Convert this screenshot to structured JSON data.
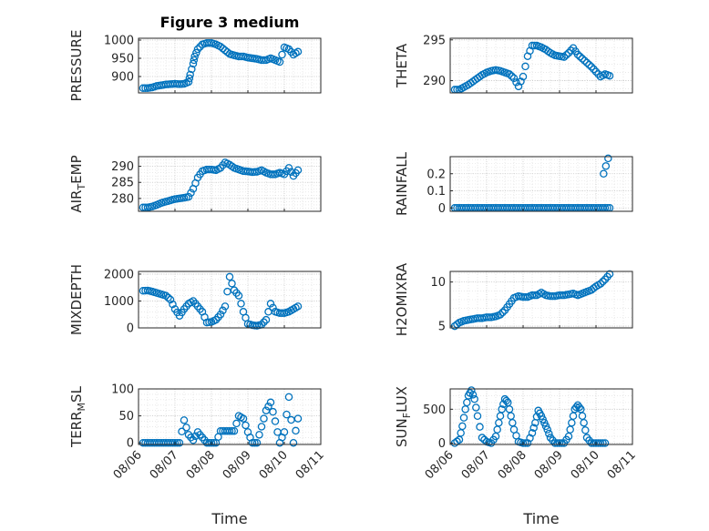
{
  "figure_title": "Figure 3 medium",
  "x_axis_label": "Time",
  "x_tick_labels": [
    "08/06",
    "08/07",
    "08/08",
    "08/09",
    "08/10",
    "08/11"
  ],
  "marker_color": "#0072BD",
  "chart_data": [
    {
      "type": "scatter",
      "title": "Figure 3 medium",
      "ylabel": "PRESSURE",
      "ylim": [
        855,
        1005
      ],
      "yticks": [
        900,
        950,
        1000
      ],
      "xlabel": "",
      "xlim": [
        "08/06",
        "08/11"
      ],
      "grid": true,
      "x": [
        "08/06 03:00",
        "08/06 06:00",
        "08/06 09:00",
        "08/06 12:00",
        "08/06 15:00",
        "08/06 18:00",
        "08/06 21:00",
        "08/07 00:00",
        "08/07 03:00",
        "08/07 06:00",
        "08/07 09:00",
        "08/07 10:00",
        "08/07 12:00",
        "08/07 13:00",
        "08/07 15:00",
        "08/07 18:00",
        "08/07 21:00",
        "08/08 00:00",
        "08/08 03:00",
        "08/08 06:00",
        "08/08 09:00",
        "08/08 12:00",
        "08/08 15:00",
        "08/08 18:00",
        "08/08 21:00",
        "08/09 00:00",
        "08/09 03:00",
        "08/09 06:00",
        "08/09 09:00",
        "08/09 12:00",
        "08/09 15:00",
        "08/09 18:00",
        "08/09 21:00",
        "08/10 00:00",
        "08/10 03:00",
        "08/10 06:00",
        "08/10 09:00"
      ],
      "y": [
        868,
        868,
        870,
        874,
        876,
        878,
        879,
        880,
        879,
        880,
        885,
        905,
        935,
        955,
        975,
        988,
        992,
        992,
        988,
        982,
        972,
        962,
        958,
        955,
        955,
        952,
        950,
        948,
        945,
        945,
        950,
        945,
        940,
        980,
        975,
        960,
        968
      ]
    },
    {
      "type": "scatter",
      "ylabel": "THETA",
      "ylim": [
        288.5,
        295.2
      ],
      "yticks": [
        290,
        295
      ],
      "xlim": [
        "08/06",
        "08/11"
      ],
      "grid": true,
      "x": [
        "08/06 03:00",
        "08/06 06:00",
        "08/06 09:00",
        "08/06 12:00",
        "08/06 15:00",
        "08/06 18:00",
        "08/06 21:00",
        "08/07 00:00",
        "08/07 03:00",
        "08/07 06:00",
        "08/07 09:00",
        "08/07 12:00",
        "08/07 15:00",
        "08/07 18:00",
        "08/07 21:00",
        "08/08 00:00",
        "08/08 03:00",
        "08/08 06:00",
        "08/08 09:00",
        "08/08 12:00",
        "08/08 15:00",
        "08/08 18:00",
        "08/08 21:00",
        "08/09 00:00",
        "08/09 03:00",
        "08/09 06:00",
        "08/09 09:00",
        "08/09 12:00",
        "08/09 15:00",
        "08/09 18:00",
        "08/09 21:00",
        "08/10 00:00",
        "08/10 03:00",
        "08/10 06:00",
        "08/10 09:00"
      ],
      "y": [
        288.9,
        288.9,
        289.2,
        289.5,
        289.9,
        290.3,
        290.7,
        291.0,
        291.2,
        291.3,
        291.2,
        291.0,
        290.8,
        290.3,
        289.3,
        290.5,
        293.0,
        294.3,
        294.3,
        294.1,
        293.8,
        293.4,
        293.1,
        293.0,
        292.9,
        293.4,
        294.0,
        293.2,
        292.7,
        292.2,
        291.7,
        291.1,
        290.5,
        290.8,
        290.6
      ]
    },
    {
      "type": "scatter",
      "ylabel": "AIR_TEMP",
      "ylim": [
        276,
        293
      ],
      "yticks": [
        280,
        285,
        290
      ],
      "xlim": [
        "08/06",
        "08/11"
      ],
      "grid": true,
      "x": [
        "08/06 03:00",
        "08/06 06:00",
        "08/06 09:00",
        "08/06 12:00",
        "08/06 15:00",
        "08/06 18:00",
        "08/06 21:00",
        "08/07 00:00",
        "08/07 03:00",
        "08/07 06:00",
        "08/07 09:00",
        "08/07 12:00",
        "08/07 15:00",
        "08/07 18:00",
        "08/07 21:00",
        "08/08 00:00",
        "08/08 03:00",
        "08/08 06:00",
        "08/08 09:00",
        "08/08 12:00",
        "08/08 15:00",
        "08/08 18:00",
        "08/08 21:00",
        "08/09 00:00",
        "08/09 03:00",
        "08/09 06:00",
        "08/09 09:00",
        "08/09 12:00",
        "08/09 15:00",
        "08/09 18:00",
        "08/09 21:00",
        "08/10 00:00",
        "08/10 03:00",
        "08/10 06:00",
        "08/10 09:00"
      ],
      "y": [
        277.2,
        277.2,
        277.5,
        278.0,
        278.6,
        279.0,
        279.4,
        279.8,
        280.0,
        280.2,
        280.5,
        283.0,
        286.5,
        288.5,
        289.0,
        289.0,
        288.8,
        289.5,
        291.2,
        290.5,
        289.5,
        289.0,
        288.5,
        288.4,
        288.2,
        288.3,
        288.8,
        288.0,
        287.5,
        287.5,
        288.0,
        287.5,
        289.5,
        287.0,
        288.8
      ]
    },
    {
      "type": "scatter",
      "ylabel": "RAINFALL",
      "ylim": [
        -0.02,
        0.3
      ],
      "yticks": [
        0,
        0.1,
        0.2
      ],
      "xlim": [
        "08/06",
        "08/11"
      ],
      "grid": true,
      "x": [
        "08/06 03:00",
        "08/06 06:00",
        "08/06 09:00",
        "08/06 12:00",
        "08/06 15:00",
        "08/06 18:00",
        "08/06 21:00",
        "08/07 00:00",
        "08/07 03:00",
        "08/07 06:00",
        "08/07 09:00",
        "08/07 12:00",
        "08/07 15:00",
        "08/07 18:00",
        "08/07 21:00",
        "08/08 00:00",
        "08/08 03:00",
        "08/08 06:00",
        "08/08 09:00",
        "08/08 12:00",
        "08/08 15:00",
        "08/08 18:00",
        "08/08 21:00",
        "08/09 00:00",
        "08/09 03:00",
        "08/09 06:00",
        "08/09 09:00",
        "08/09 12:00",
        "08/09 15:00",
        "08/09 18:00",
        "08/09 21:00",
        "08/10 00:00",
        "08/10 03:00",
        "08/10 06:00",
        "08/10 09:00",
        "08/10 05:00",
        "08/10 08:00"
      ],
      "y": [
        0,
        0,
        0,
        0,
        0,
        0,
        0,
        0,
        0,
        0,
        0,
        0,
        0,
        0,
        0,
        0,
        0,
        0,
        0,
        0,
        0,
        0,
        0,
        0,
        0,
        0,
        0,
        0,
        0,
        0,
        0,
        0,
        0,
        0,
        0,
        0.2,
        0.29
      ]
    },
    {
      "type": "scatter",
      "ylabel": "MIXDEPTH",
      "ylim": [
        0,
        2100
      ],
      "yticks": [
        0,
        1000,
        2000
      ],
      "xlim": [
        "08/06",
        "08/11"
      ],
      "grid": true,
      "x": [
        "08/06 03:00",
        "08/06 06:00",
        "08/06 09:00",
        "08/06 12:00",
        "08/06 15:00",
        "08/06 18:00",
        "08/06 21:00",
        "08/07 00:00",
        "08/07 03:00",
        "08/07 06:00",
        "08/07 09:00",
        "08/07 12:00",
        "08/07 15:00",
        "08/07 18:00",
        "08/07 21:00",
        "08/08 00:00",
        "08/08 03:00",
        "08/08 06:00",
        "08/08 09:00",
        "08/08 12:00",
        "08/08 15:00",
        "08/08 18:00",
        "08/08 21:00",
        "08/09 00:00",
        "08/09 03:00",
        "08/09 06:00",
        "08/09 09:00",
        "08/09 12:00",
        "08/09 15:00",
        "08/09 18:00",
        "08/09 21:00",
        "08/10 00:00",
        "08/10 03:00",
        "08/10 06:00",
        "08/10 09:00"
      ],
      "y": [
        1380,
        1390,
        1350,
        1300,
        1250,
        1200,
        1050,
        700,
        450,
        700,
        900,
        1000,
        800,
        600,
        200,
        220,
        300,
        500,
        800,
        1900,
        1400,
        1200,
        600,
        150,
        100,
        80,
        120,
        300,
        900,
        600,
        550,
        550,
        600,
        700,
        800
      ]
    },
    {
      "type": "scatter",
      "ylabel": "H2OMIXRA",
      "ylim": [
        4.8,
        11.2
      ],
      "yticks": [
        5,
        10
      ],
      "xlim": [
        "08/06",
        "08/11"
      ],
      "grid": true,
      "x": [
        "08/06 03:00",
        "08/06 06:00",
        "08/06 09:00",
        "08/06 12:00",
        "08/06 15:00",
        "08/06 18:00",
        "08/06 21:00",
        "08/07 00:00",
        "08/07 03:00",
        "08/07 06:00",
        "08/07 09:00",
        "08/07 12:00",
        "08/07 15:00",
        "08/07 18:00",
        "08/07 21:00",
        "08/08 00:00",
        "08/08 03:00",
        "08/08 06:00",
        "08/08 09:00",
        "08/08 12:00",
        "08/08 15:00",
        "08/08 18:00",
        "08/08 21:00",
        "08/09 00:00",
        "08/09 03:00",
        "08/09 06:00",
        "08/09 09:00",
        "08/09 12:00",
        "08/09 15:00",
        "08/09 18:00",
        "08/09 21:00",
        "08/10 00:00",
        "08/10 03:00",
        "08/10 06:00",
        "08/10 09:00"
      ],
      "y": [
        5.0,
        5.4,
        5.6,
        5.7,
        5.8,
        5.9,
        5.9,
        6.0,
        6.0,
        6.1,
        6.3,
        6.8,
        7.5,
        8.2,
        8.4,
        8.3,
        8.3,
        8.5,
        8.5,
        8.8,
        8.5,
        8.4,
        8.4,
        8.5,
        8.5,
        8.6,
        8.7,
        8.5,
        8.7,
        8.9,
        9.1,
        9.5,
        9.8,
        10.3,
        10.9
      ]
    },
    {
      "type": "scatter",
      "ylabel": "TERR_MSL",
      "ylim": [
        -3,
        100
      ],
      "yticks": [
        0,
        50,
        100
      ],
      "xlim": [
        "08/06",
        "08/11"
      ],
      "grid": true,
      "x": [
        "08/06 03:00",
        "08/06 06:00",
        "08/06 09:00",
        "08/06 12:00",
        "08/06 15:00",
        "08/06 18:00",
        "08/06 21:00",
        "08/07 00:00",
        "08/07 03:00",
        "08/07 06:00",
        "08/07 09:00",
        "08/07 12:00",
        "08/07 15:00",
        "08/07 18:00",
        "08/07 21:00",
        "08/08 00:00",
        "08/08 03:00",
        "08/08 06:00",
        "08/08 09:00",
        "08/08 12:00",
        "08/08 15:00",
        "08/08 18:00",
        "08/08 21:00",
        "08/09 00:00",
        "08/09 03:00",
        "08/09 06:00",
        "08/09 09:00",
        "08/09 12:00",
        "08/09 15:00",
        "08/09 18:00",
        "08/09 21:00",
        "08/10 00:00",
        "08/10 03:00",
        "08/10 06:00",
        "08/10 09:00"
      ],
      "y": [
        0,
        0,
        0,
        0,
        0,
        0,
        0,
        0,
        0,
        42,
        15,
        5,
        20,
        10,
        0,
        0,
        0,
        22,
        22,
        22,
        22,
        50,
        45,
        20,
        0,
        0,
        30,
        60,
        75,
        40,
        0,
        20,
        85,
        0,
        45
      ]
    },
    {
      "type": "scatter",
      "ylabel": "SUN_FLUX",
      "ylim": [
        -20,
        800
      ],
      "yticks": [
        0,
        500
      ],
      "xlim": [
        "08/06",
        "08/11"
      ],
      "grid": true,
      "x": [
        "08/06 03:00",
        "08/06 06:00",
        "08/06 08:00",
        "08/06 10:00",
        "08/06 12:00",
        "08/06 14:00",
        "08/06 16:00",
        "08/06 18:00",
        "08/06 21:00",
        "08/07 00:00",
        "08/07 03:00",
        "08/07 06:00",
        "08/07 08:00",
        "08/07 10:00",
        "08/07 12:00",
        "08/07 14:00",
        "08/07 16:00",
        "08/07 18:00",
        "08/07 21:00",
        "08/08 00:00",
        "08/08 03:00",
        "08/08 06:00",
        "08/08 08:00",
        "08/08 10:00",
        "08/08 12:00",
        "08/08 14:00",
        "08/08 16:00",
        "08/08 18:00",
        "08/08 21:00",
        "08/09 00:00",
        "08/09 03:00",
        "08/09 06:00",
        "08/09 08:00",
        "08/09 10:00",
        "08/09 12:00",
        "08/09 14:00",
        "08/09 16:00",
        "08/09 18:00",
        "08/09 21:00",
        "08/10 00:00",
        "08/10 03:00",
        "08/10 06:00"
      ],
      "y": [
        0,
        50,
        250,
        500,
        700,
        780,
        650,
        400,
        80,
        20,
        0,
        100,
        300,
        500,
        650,
        600,
        400,
        200,
        20,
        0,
        0,
        150,
        300,
        480,
        400,
        300,
        200,
        80,
        0,
        0,
        0,
        100,
        300,
        500,
        560,
        500,
        300,
        80,
        0,
        0,
        0,
        0
      ]
    }
  ]
}
